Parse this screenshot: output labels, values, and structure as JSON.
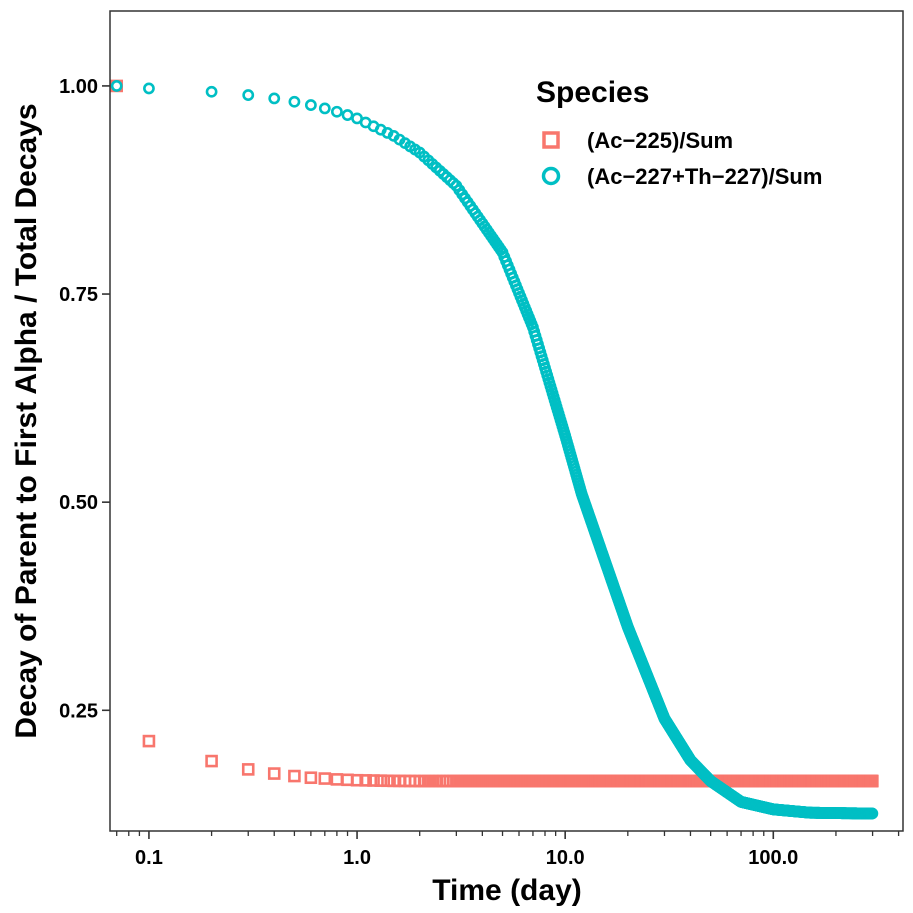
{
  "colors": {
    "series1": "#F8766D",
    "series2": "#00BFC4",
    "panel_border": "#333333",
    "background": "#FFFFFF"
  },
  "chart_data": {
    "type": "scatter",
    "title": "",
    "xlabel": "Time (day)",
    "ylabel": "Decay of Parent to First Alpha / Total Decays",
    "x_scale": "log10",
    "xlim": [
      0.065,
      420
    ],
    "ylim": [
      0.105,
      1.09
    ],
    "x_ticks": [
      0.1,
      1,
      10,
      100
    ],
    "x_tick_labels": [
      "0.1",
      "1.0",
      "10.0",
      "100.0"
    ],
    "y_ticks": [
      0.25,
      0.5,
      0.75,
      1.0
    ],
    "y_tick_labels": [
      "0.25",
      "0.50",
      "0.75",
      "1.00"
    ],
    "grid": false,
    "legend": {
      "title": "Species",
      "placement": "top-right"
    },
    "x_sampling": {
      "start": 0.1,
      "step": 0.1,
      "end": 300,
      "leading_point": 0.07
    },
    "series": [
      {
        "name": "(Ac−225)/Sum",
        "marker": "square",
        "color": "#F8766D",
        "points": [
          [
            0.07,
            1.0
          ],
          [
            0.1,
            0.213
          ],
          [
            0.2,
            0.189
          ],
          [
            0.3,
            0.179
          ],
          [
            0.4,
            0.174
          ],
          [
            0.5,
            0.171
          ],
          [
            0.6,
            0.169
          ],
          [
            0.7,
            0.168
          ],
          [
            0.8,
            0.167
          ],
          [
            0.9,
            0.1665
          ],
          [
            1.0,
            0.166
          ],
          [
            1.5,
            0.1652
          ],
          [
            2.0,
            0.165
          ],
          [
            5.0,
            0.165
          ],
          [
            300,
            0.165
          ]
        ]
      },
      {
        "name": "(Ac−227+Th−227)/Sum",
        "marker": "circle",
        "color": "#00BFC4",
        "points": [
          [
            0.07,
            1.0
          ],
          [
            0.1,
            0.997
          ],
          [
            0.2,
            0.993
          ],
          [
            0.3,
            0.989
          ],
          [
            0.4,
            0.985
          ],
          [
            0.5,
            0.981
          ],
          [
            0.6,
            0.977
          ],
          [
            0.7,
            0.973
          ],
          [
            0.8,
            0.969
          ],
          [
            0.9,
            0.965
          ],
          [
            1.0,
            0.961
          ],
          [
            1.5,
            0.94
          ],
          [
            2.0,
            0.92
          ],
          [
            3.0,
            0.88
          ],
          [
            5.0,
            0.8
          ],
          [
            7.0,
            0.71
          ],
          [
            10.0,
            0.58
          ],
          [
            12.0,
            0.51
          ],
          [
            15.0,
            0.44
          ],
          [
            20.0,
            0.35
          ],
          [
            30.0,
            0.24
          ],
          [
            40.0,
            0.19
          ],
          [
            50.0,
            0.165
          ],
          [
            70.0,
            0.14
          ],
          [
            100.0,
            0.131
          ],
          [
            150.0,
            0.127
          ],
          [
            200.0,
            0.1265
          ],
          [
            300.0,
            0.126
          ]
        ]
      }
    ]
  }
}
